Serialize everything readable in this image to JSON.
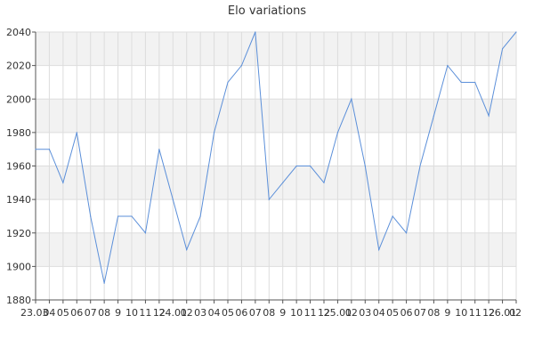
{
  "chart_data": {
    "type": "line",
    "title": "Elo variations",
    "xlabel": "",
    "ylabel": "",
    "ylim": [
      1880,
      2040
    ],
    "yticks": [
      1880,
      1900,
      1920,
      1940,
      1960,
      1980,
      2000,
      2020,
      2040
    ],
    "xtick_labels": [
      "23.03",
      "04",
      "05",
      "06",
      "07",
      "08",
      "9",
      "10",
      "11",
      "12",
      "24.01",
      "02",
      "03",
      "04",
      "05",
      "06",
      "07",
      "08",
      "9",
      "10",
      "11",
      "12",
      "25.01",
      "02",
      "03",
      "04",
      "05",
      "06",
      "07",
      "08",
      "9",
      "10",
      "11",
      "12",
      "26.01",
      "02"
    ],
    "grid": true,
    "alternating_bands": true,
    "series_color": "#5b8fd9",
    "series": [
      {
        "values": [
          1970,
          1970,
          1950,
          1980,
          1930,
          1890,
          1930,
          1930,
          1920,
          1970,
          1940,
          1910,
          1930,
          1980,
          2010,
          2020,
          2040,
          1940,
          1950,
          1960,
          1960,
          1950,
          1980,
          2000,
          1960,
          1910,
          1930,
          1920,
          1960,
          1990,
          2020,
          2010,
          2010,
          1990,
          2030,
          2040
        ]
      }
    ]
  }
}
